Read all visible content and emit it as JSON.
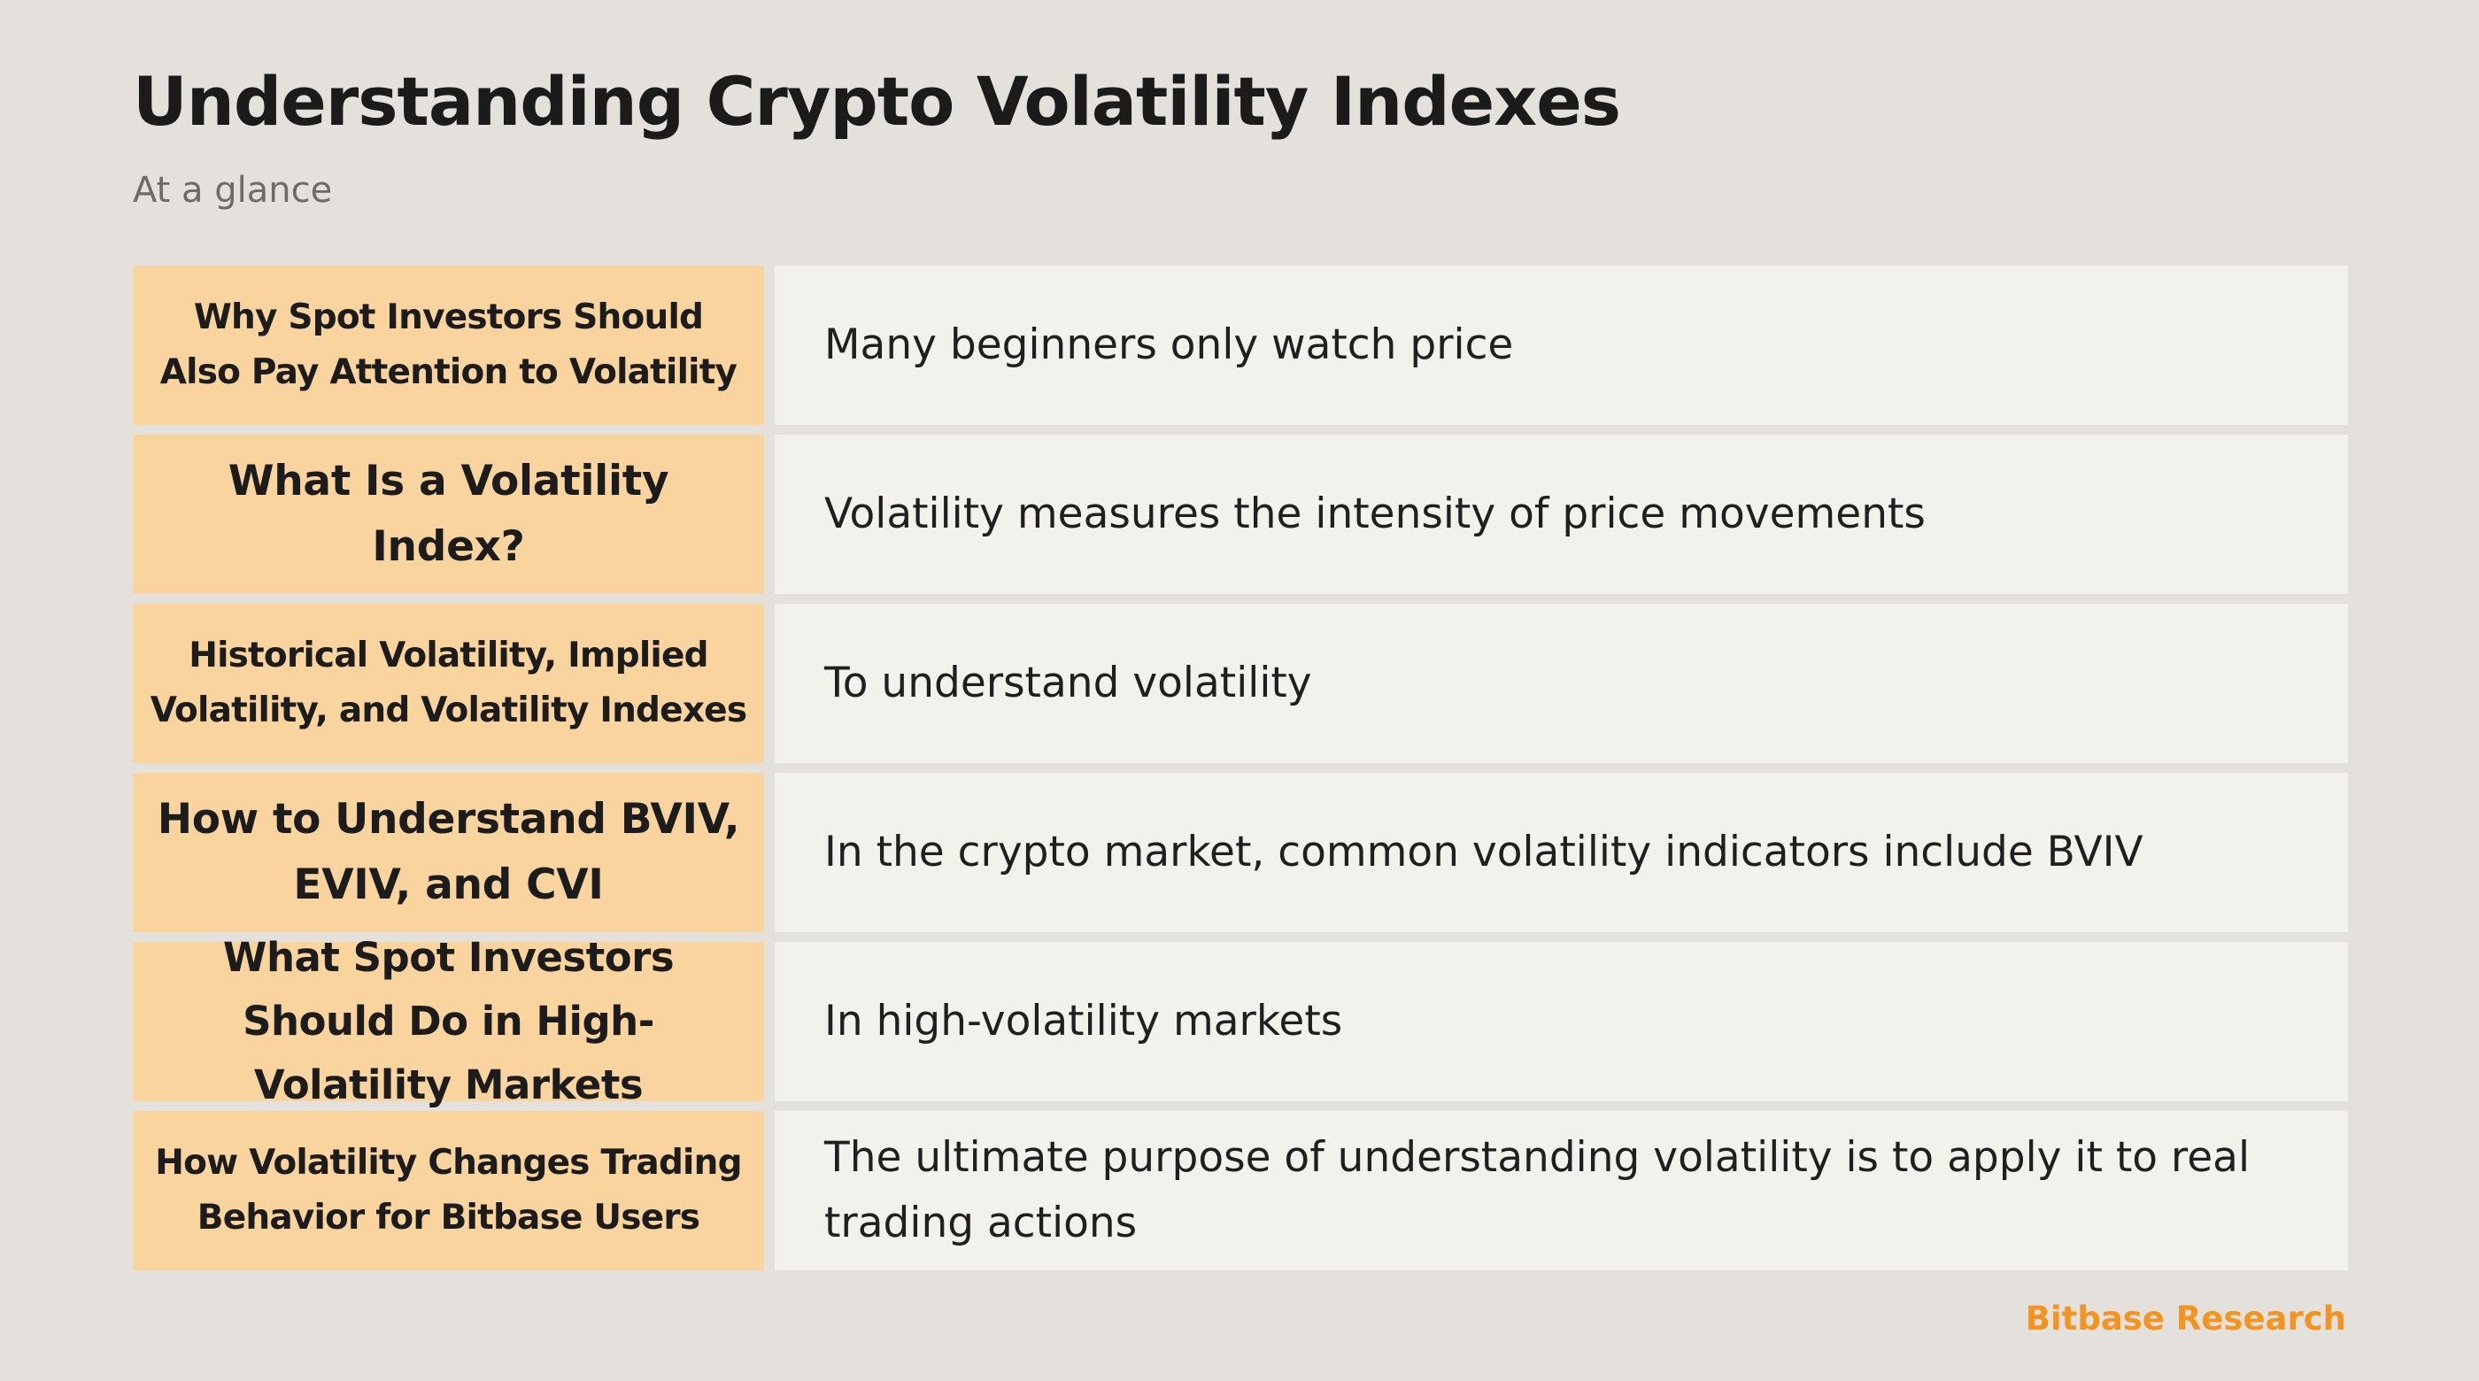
{
  "title": "Understanding Crypto Volatility Indexes",
  "subtitle": "At a glance",
  "rows": [
    {
      "topic": "Why Spot Investors Should Also Pay Attention to Volatility",
      "description": "Many beginners only watch price"
    },
    {
      "topic": "What Is a Volatility Index?",
      "description": "Volatility measures the intensity of price movements"
    },
    {
      "topic": "Historical Volatility, Implied Volatility, and Volatility Indexes",
      "description": "To understand volatility"
    },
    {
      "topic": "How to Understand BVIV, EVIV, and CVI",
      "description": "In the crypto market, common volatility indicators include BVIV"
    },
    {
      "topic": "What Spot Investors Should Do in High-Volatility Markets",
      "description": "In high-volatility markets"
    },
    {
      "topic": "How Volatility Changes Trading Behavior for Bitbase Users",
      "description": "The ultimate purpose of understanding volatility is to apply it to real trading actions"
    }
  ],
  "footer": {
    "brand": "Bitbase Research"
  },
  "colors": {
    "background": "#e4e0db",
    "topic_cell": "#fad49f",
    "description_cell": "#f3f1ec",
    "brand_accent": "#f2941f"
  }
}
